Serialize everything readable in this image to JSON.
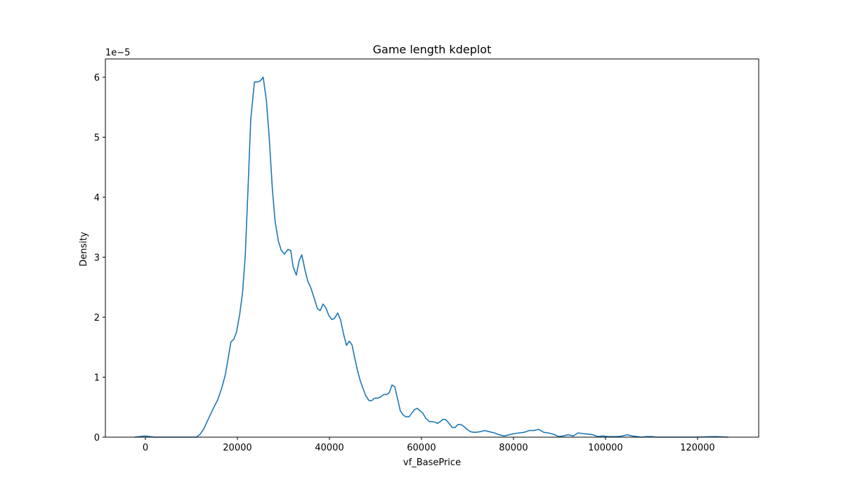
{
  "chart_data": {
    "type": "line",
    "title": "Game length kdeplot",
    "x_label": "vf_BasePrice",
    "y_label": "Density",
    "y_offset_label": "1e−5",
    "color": "#1f77b4",
    "x": [
      -2400,
      0,
      2000,
      11100,
      11900,
      12700,
      13600,
      14700,
      15700,
      16600,
      17400,
      18000,
      18600,
      19200,
      19800,
      20500,
      21100,
      21700,
      22300,
      22900,
      23700,
      24400,
      25000,
      25600,
      26300,
      26900,
      27600,
      28200,
      28900,
      29500,
      30200,
      31000,
      31600,
      32100,
      32800,
      33400,
      34000,
      34700,
      35300,
      36000,
      36800,
      37400,
      38000,
      38600,
      39200,
      39800,
      40500,
      41100,
      41800,
      42400,
      43100,
      43700,
      44300,
      44900,
      45500,
      46100,
      46700,
      47300,
      47900,
      48600,
      49200,
      49800,
      50500,
      51100,
      51800,
      52400,
      53000,
      53600,
      54200,
      54800,
      55400,
      56000,
      56600,
      57300,
      57900,
      58500,
      59100,
      59700,
      60300,
      60900,
      61700,
      62300,
      62900,
      63500,
      64100,
      64700,
      65300,
      66000,
      66700,
      67300,
      67900,
      68600,
      69200,
      69900,
      70700,
      71600,
      72700,
      73700,
      74800,
      75900,
      76900,
      78000,
      79100,
      80200,
      81200,
      82300,
      83400,
      84400,
      85500,
      86600,
      87600,
      88700,
      89800,
      90800,
      91900,
      93000,
      94000,
      95100,
      96200,
      97300,
      98300,
      99400,
      100500,
      101500,
      102600,
      103700,
      104700,
      105800,
      106900,
      107900,
      109000,
      110100,
      111100,
      115000,
      119500,
      124100,
      126700
    ],
    "values": [
      0,
      0.02,
      0,
      0,
      0.05,
      0.14,
      0.29,
      0.47,
      0.62,
      0.82,
      1.05,
      1.32,
      1.59,
      1.63,
      1.75,
      2.05,
      2.4,
      3.02,
      4.13,
      5.3,
      5.92,
      5.92,
      5.94,
      6.0,
      5.61,
      5.01,
      4.13,
      3.59,
      3.27,
      3.12,
      3.05,
      3.13,
      3.11,
      2.84,
      2.7,
      2.94,
      3.04,
      2.78,
      2.6,
      2.48,
      2.29,
      2.14,
      2.11,
      2.22,
      2.16,
      2.04,
      1.96,
      1.98,
      2.07,
      1.96,
      1.71,
      1.53,
      1.6,
      1.54,
      1.32,
      1.11,
      0.94,
      0.81,
      0.69,
      0.61,
      0.61,
      0.65,
      0.65,
      0.67,
      0.71,
      0.71,
      0.74,
      0.87,
      0.84,
      0.64,
      0.44,
      0.37,
      0.34,
      0.34,
      0.4,
      0.46,
      0.48,
      0.44,
      0.4,
      0.32,
      0.26,
      0.26,
      0.25,
      0.23,
      0.26,
      0.3,
      0.29,
      0.23,
      0.16,
      0.16,
      0.21,
      0.21,
      0.18,
      0.13,
      0.09,
      0.08,
      0.09,
      0.11,
      0.09,
      0.07,
      0.04,
      0.02,
      0.04,
      0.06,
      0.07,
      0.08,
      0.11,
      0.11,
      0.13,
      0.08,
      0.07,
      0.05,
      0.01,
      0.02,
      0.04,
      0.02,
      0.07,
      0.06,
      0.05,
      0.04,
      0.01,
      0.02,
      0.01,
      0.01,
      0.01,
      0.02,
      0.04,
      0.02,
      0.01,
      0,
      0.01,
      0.01,
      0,
      0,
      0,
      0.01,
      0
    ],
    "xlim": [
      -8700,
      133300
    ],
    "ylim": [
      0,
      6.304
    ],
    "xticks": [
      0,
      20000,
      40000,
      60000,
      80000,
      100000,
      120000
    ],
    "yticks": [
      0,
      1,
      2,
      3,
      4,
      5,
      6
    ]
  }
}
